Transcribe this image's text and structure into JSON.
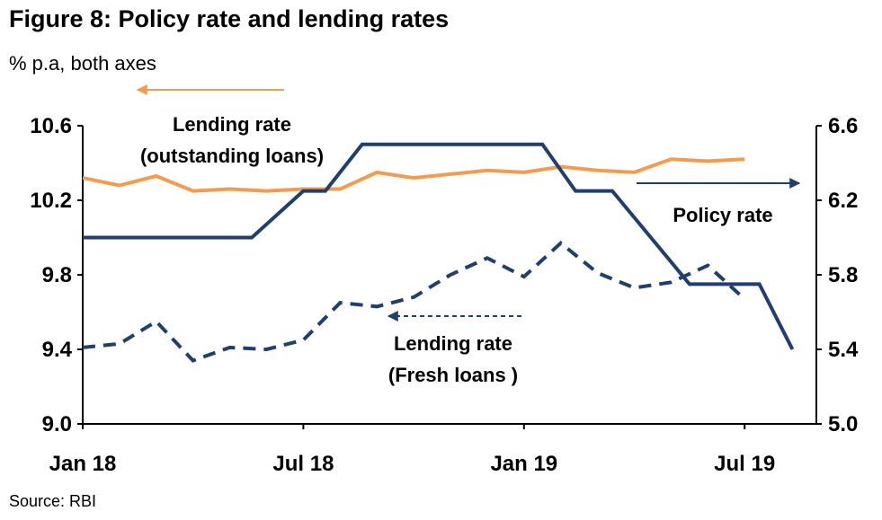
{
  "title": "Figure 8: Policy rate and lending rates",
  "subtitle": "% p.a, both axes",
  "source": "Source: RBI",
  "colors": {
    "orange": "#F39C4F",
    "navy": "#1F3F6E"
  },
  "chart_data": {
    "type": "line",
    "x_labels": [
      "Jan 18",
      "Jul 18",
      "Jan 19",
      "Jul 19"
    ],
    "x_label_months": [
      0,
      6,
      12,
      18
    ],
    "left_axis": {
      "min": 9.0,
      "max": 10.6,
      "ticks": [
        "9.0",
        "9.4",
        "9.8",
        "10.2",
        "10.6"
      ],
      "values": [
        9.0,
        9.4,
        9.8,
        10.2,
        10.6
      ]
    },
    "right_axis": {
      "min": 5.0,
      "max": 6.6,
      "ticks": [
        "5.0",
        "5.4",
        "5.8",
        "6.2",
        "6.6"
      ],
      "values": [
        5.0,
        5.4,
        5.8,
        6.2,
        6.6
      ]
    },
    "grid": false,
    "series": [
      {
        "name": "Lending rate (outstanding loans)",
        "axis": "left",
        "style": "solid",
        "color": "#F39C4F",
        "x": [
          0,
          1,
          2,
          3,
          4,
          5,
          6,
          7,
          8,
          9,
          10,
          11,
          12,
          13,
          14,
          15,
          16,
          17,
          18
        ],
        "y": [
          10.32,
          10.28,
          10.33,
          10.25,
          10.26,
          10.25,
          10.26,
          10.26,
          10.35,
          10.32,
          10.34,
          10.36,
          10.35,
          10.38,
          10.36,
          10.35,
          10.42,
          10.41,
          10.42
        ]
      },
      {
        "name": "Lending rate (Fresh loans )",
        "axis": "left",
        "style": "dashed",
        "color": "#1F3F6E",
        "x": [
          0,
          1,
          2,
          3,
          4,
          5,
          6,
          7,
          8,
          9,
          10,
          11,
          12,
          13,
          14,
          15,
          16,
          17,
          18
        ],
        "y": [
          9.41,
          9.43,
          9.55,
          9.34,
          9.41,
          9.4,
          9.45,
          9.65,
          9.63,
          9.68,
          9.8,
          9.89,
          9.79,
          9.97,
          9.81,
          9.73,
          9.76,
          9.85,
          9.67
        ]
      },
      {
        "name": "Policy rate",
        "axis": "right",
        "style": "solid",
        "color": "#1F3F6E",
        "x": [
          0,
          4.6,
          6,
          6.6,
          7.6,
          12.5,
          13.4,
          14.4,
          16.5,
          18.4,
          19.3
        ],
        "y": [
          6.0,
          6.0,
          6.25,
          6.25,
          6.5,
          6.5,
          6.25,
          6.25,
          5.75,
          5.75,
          5.4
        ]
      }
    ],
    "annotations": [
      {
        "lines": [
          "Lending rate",
          "(outstanding loans)"
        ],
        "arrow": "left",
        "series": "Lending rate (outstanding loans)"
      },
      {
        "lines": [
          "Policy rate"
        ],
        "arrow": "right",
        "series": "Policy rate"
      },
      {
        "lines": [
          "Lending rate",
          "(Fresh loans )"
        ],
        "arrow": "left",
        "series": "Lending rate (Fresh loans )"
      }
    ]
  }
}
